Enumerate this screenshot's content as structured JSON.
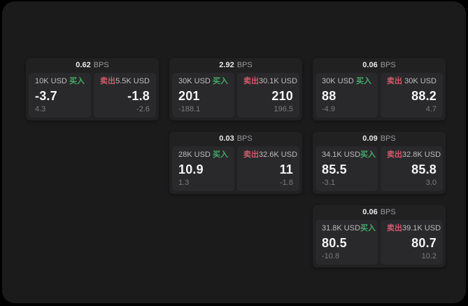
{
  "labels": {
    "buy": "买入",
    "sell": "卖出",
    "bps_unit": "BPS"
  },
  "colors": {
    "outer_bg": "#000000",
    "panel_bg": "#1b1b1c",
    "card_bg": "#212122",
    "tile_bg": "#29292b",
    "buy": "#42a968",
    "sell": "#cf5a6b"
  },
  "cards": [
    {
      "row": 1,
      "col": 1,
      "bps": "0.62",
      "buy": {
        "amount": "10K USD",
        "price": "-3.7",
        "delta": "4.3"
      },
      "sell": {
        "amount": "5.5K USD",
        "price": "-1.8",
        "delta": "-2.6"
      }
    },
    {
      "row": 1,
      "col": 2,
      "bps": "2.92",
      "buy": {
        "amount": "30K USD",
        "price": "201",
        "delta": "-188.1"
      },
      "sell": {
        "amount": "30.1K USD",
        "price": "210",
        "delta": "196.5"
      }
    },
    {
      "row": 1,
      "col": 3,
      "bps": "0.06",
      "buy": {
        "amount": "30K USD",
        "price": "88",
        "delta": "-4.9"
      },
      "sell": {
        "amount": "30K USD",
        "price": "88.2",
        "delta": "4.7"
      }
    },
    {
      "row": 2,
      "col": 2,
      "bps": "0.03",
      "buy": {
        "amount": "28K USD",
        "price": "10.9",
        "delta": "1.3"
      },
      "sell": {
        "amount": "32.6K USD",
        "price": "11",
        "delta": "-1.8"
      }
    },
    {
      "row": 2,
      "col": 3,
      "bps": "0.09",
      "buy": {
        "amount": "34.1K USD",
        "price": "85.5",
        "delta": "-3.1"
      },
      "sell": {
        "amount": "32.8K USD",
        "price": "85.8",
        "delta": "3.0"
      }
    },
    {
      "row": 3,
      "col": 3,
      "bps": "0.06",
      "buy": {
        "amount": "31.8K USD",
        "price": "80.5",
        "delta": "-10.8"
      },
      "sell": {
        "amount": "39.1K USD",
        "price": "80.7",
        "delta": "10.2"
      }
    }
  ]
}
